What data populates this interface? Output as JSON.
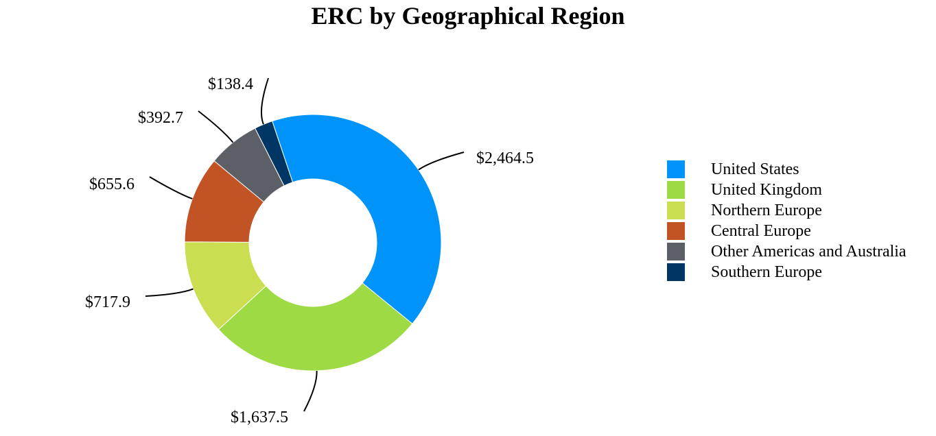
{
  "chart_data": {
    "type": "pie",
    "donut": true,
    "title": "ERC by Geographical Region",
    "legend_position": "right",
    "slices": [
      {
        "name": "United States",
        "value": 2464.5,
        "label": "$2,464.5",
        "color": "#0094FA"
      },
      {
        "name": "United Kingdom",
        "value": 1637.5,
        "label": "$1,637.5",
        "color": "#9EDA44"
      },
      {
        "name": "Northern Europe",
        "value": 717.9,
        "label": "$717.9",
        "color": "#CBDD50"
      },
      {
        "name": "Central Europe",
        "value": 655.6,
        "label": "$655.6",
        "color": "#C25325"
      },
      {
        "name": "Other Americas and Australia",
        "value": 392.7,
        "label": "$392.7",
        "color": "#5D5F67"
      },
      {
        "name": "Southern Europe",
        "value": 138.4,
        "label": "$138.4",
        "color": "#003663"
      }
    ]
  }
}
